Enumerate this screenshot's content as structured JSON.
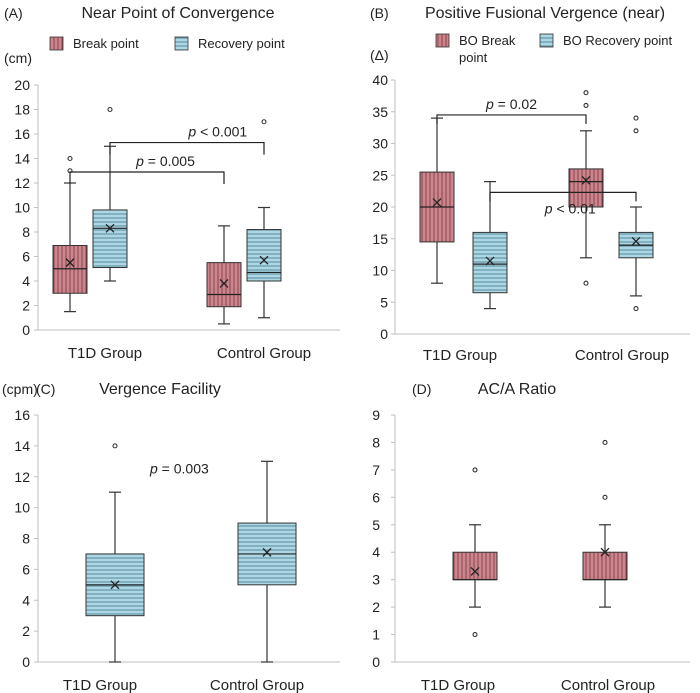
{
  "colors": {
    "break": "#c9868c",
    "recovery": "#add8e3",
    "break_stripe": "#8a3a44",
    "recovery_stripe": "#4d7f95"
  },
  "chart_data": [
    {
      "panel": "(A)",
      "type": "box",
      "title": "Near Point of Convergence",
      "unit": "(cm)",
      "ylim": [
        0,
        20
      ],
      "ticks": [
        0,
        2,
        4,
        6,
        8,
        10,
        12,
        14,
        16,
        18,
        20
      ],
      "categories": [
        "T1D Group",
        "Control Group"
      ],
      "legend": [
        {
          "label": "Break point",
          "style": "break"
        },
        {
          "label": "Recovery point",
          "style": "recovery"
        }
      ],
      "boxes": [
        {
          "group": 0,
          "series": "Break point",
          "style": "break",
          "min": 1.5,
          "q1": 3,
          "median": 5,
          "q3": 6.9,
          "max": 12,
          "mean": 5.5,
          "outliers": [
            13,
            14
          ]
        },
        {
          "group": 0,
          "series": "Recovery point",
          "style": "recovery",
          "min": 4,
          "q1": 5.1,
          "median": 8.3,
          "q3": 9.8,
          "max": 15,
          "mean": 8.3,
          "outliers": [
            18
          ]
        },
        {
          "group": 1,
          "series": "Break point",
          "style": "break",
          "min": 0.5,
          "q1": 1.9,
          "median": 2.9,
          "q3": 5.5,
          "max": 8.5,
          "mean": 3.8,
          "outliers": []
        },
        {
          "group": 1,
          "series": "Recovery point",
          "style": "recovery",
          "min": 1,
          "q1": 4,
          "median": 4.7,
          "q3": 8.2,
          "max": 10,
          "mean": 5.7,
          "outliers": [
            17
          ]
        }
      ],
      "brackets": [
        {
          "label": "p = 0.005",
          "from": [
            0,
            0
          ],
          "to": [
            1,
            0
          ],
          "y": 12.9
        },
        {
          "label": "p < 0.001",
          "from": [
            0,
            1
          ],
          "to": [
            1,
            1
          ],
          "y": 15.3
        }
      ]
    },
    {
      "panel": "(B)",
      "type": "box",
      "title": "Positive Fusional Vergence (near)",
      "unit": "(Δ)",
      "ylim": [
        0,
        40
      ],
      "ticks": [
        0,
        5,
        10,
        15,
        20,
        25,
        30,
        35,
        40
      ],
      "categories": [
        "T1D Group",
        "Control Group"
      ],
      "legend": [
        {
          "label": "BO Break point",
          "style": "break"
        },
        {
          "label": "BO Recovery point",
          "style": "recovery"
        }
      ],
      "boxes": [
        {
          "group": 0,
          "series": "BO Break point",
          "style": "break",
          "min": 8,
          "q1": 14.5,
          "median": 20,
          "q3": 25.5,
          "max": 34,
          "mean": 20.7,
          "outliers": []
        },
        {
          "group": 0,
          "series": "BO Recovery point",
          "style": "recovery",
          "min": 4,
          "q1": 6.5,
          "median": 11,
          "q3": 16,
          "max": 24,
          "mean": 11.5,
          "outliers": []
        },
        {
          "group": 1,
          "series": "BO Break point",
          "style": "break",
          "min": 12,
          "q1": 20,
          "median": 24,
          "q3": 26,
          "max": 32,
          "mean": 24.2,
          "outliers": [
            8,
            36,
            38
          ]
        },
        {
          "group": 1,
          "series": "BO Recovery point",
          "style": "recovery",
          "min": 6,
          "q1": 12,
          "median": 14,
          "q3": 16,
          "max": 20,
          "mean": 14.6,
          "outliers": [
            4,
            32,
            34
          ]
        }
      ],
      "brackets": [
        {
          "label": "p = 0.02",
          "from": [
            0,
            0
          ],
          "to": [
            1,
            0
          ],
          "y": 34.5
        },
        {
          "label": "p < 0.01",
          "from": [
            0,
            1
          ],
          "to": [
            1,
            1
          ],
          "y": 22.3
        }
      ]
    },
    {
      "panel": "(C)",
      "type": "box",
      "title": "Vergence Facility",
      "unit": "(cpm)",
      "ylim": [
        0,
        16
      ],
      "ticks": [
        0,
        2,
        4,
        6,
        8,
        10,
        12,
        14,
        16
      ],
      "categories": [
        "T1D Group",
        "Control Group"
      ],
      "legend": [],
      "boxes": [
        {
          "group": 0,
          "series": "Vergence Facility",
          "style": "recovery",
          "min": 0,
          "q1": 3,
          "median": 5,
          "q3": 7,
          "max": 11,
          "mean": 5,
          "outliers": [
            14
          ]
        },
        {
          "group": 1,
          "series": "Vergence Facility",
          "style": "recovery",
          "min": 0,
          "q1": 5,
          "median": 7,
          "q3": 9,
          "max": 13,
          "mean": 7.1,
          "outliers": []
        }
      ],
      "annotations": [
        {
          "label": "p = 0.003",
          "value": 12.2
        }
      ]
    },
    {
      "panel": "(D)",
      "type": "box",
      "title": "AC/A Ratio",
      "unit": "",
      "ylim": [
        0,
        9
      ],
      "ticks": [
        0,
        1,
        2,
        3,
        4,
        5,
        6,
        7,
        8,
        9
      ],
      "categories": [
        "T1D Group",
        "Control Group"
      ],
      "legend": [],
      "boxes": [
        {
          "group": 0,
          "series": "AC/A Ratio",
          "style": "break",
          "min": 2,
          "q1": 3,
          "median": 3,
          "q3": 4,
          "max": 5,
          "mean": 3.3,
          "outliers": [
            1,
            7
          ]
        },
        {
          "group": 1,
          "series": "AC/A Ratio",
          "style": "break",
          "min": 2,
          "q1": 3,
          "median": 3,
          "q3": 4,
          "max": 5,
          "mean": 4,
          "outliers": [
            6,
            8
          ]
        }
      ]
    }
  ]
}
